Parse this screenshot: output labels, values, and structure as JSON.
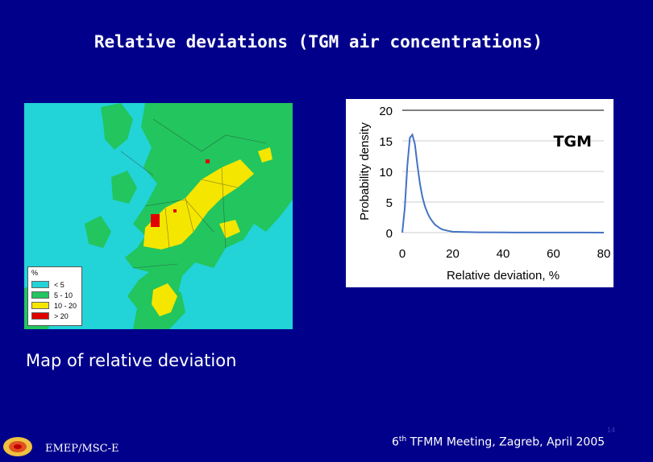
{
  "slide": {
    "title": "Relative deviations (TGM air concentrations)",
    "caption": "Map of relative deviation",
    "footer_left": "EMEP/MSC-E",
    "footer_right_num": "6",
    "footer_right_sup": "th",
    "footer_right_rest": " TFMM Meeting, Zagreb, April 2005",
    "page_number": "14"
  },
  "map": {
    "legend_title": "%",
    "legend": [
      {
        "label": "< 5",
        "color": "#22d3d8"
      },
      {
        "label": "5 - 10",
        "color": "#22c55e"
      },
      {
        "label": "10 - 20",
        "color": "#f5e600"
      },
      {
        "label": "> 20",
        "color": "#e00000"
      }
    ]
  },
  "chart_data": {
    "type": "line",
    "annotation": "TGM",
    "xlabel": "Relative deviation, %",
    "ylabel": "Probability density",
    "xlim": [
      0,
      80
    ],
    "ylim": [
      0,
      20
    ],
    "xticks": [
      0,
      20,
      40,
      60,
      80
    ],
    "yticks": [
      0,
      5,
      10,
      15,
      20
    ],
    "series": [
      {
        "color": "#4472c4",
        "x": [
          0,
          1,
          2,
          3,
          4,
          5,
          6,
          7,
          8,
          9,
          10,
          11,
          12,
          13,
          14,
          15,
          16,
          18,
          20,
          30,
          40,
          50,
          60,
          70,
          80
        ],
        "y": [
          0,
          4,
          11,
          15.5,
          16,
          14.5,
          11,
          8,
          5.8,
          4.3,
          3.2,
          2.4,
          1.8,
          1.3,
          1.0,
          0.7,
          0.5,
          0.3,
          0.15,
          0.05,
          0.02,
          0.01,
          0.01,
          0.01,
          0
        ]
      }
    ]
  }
}
